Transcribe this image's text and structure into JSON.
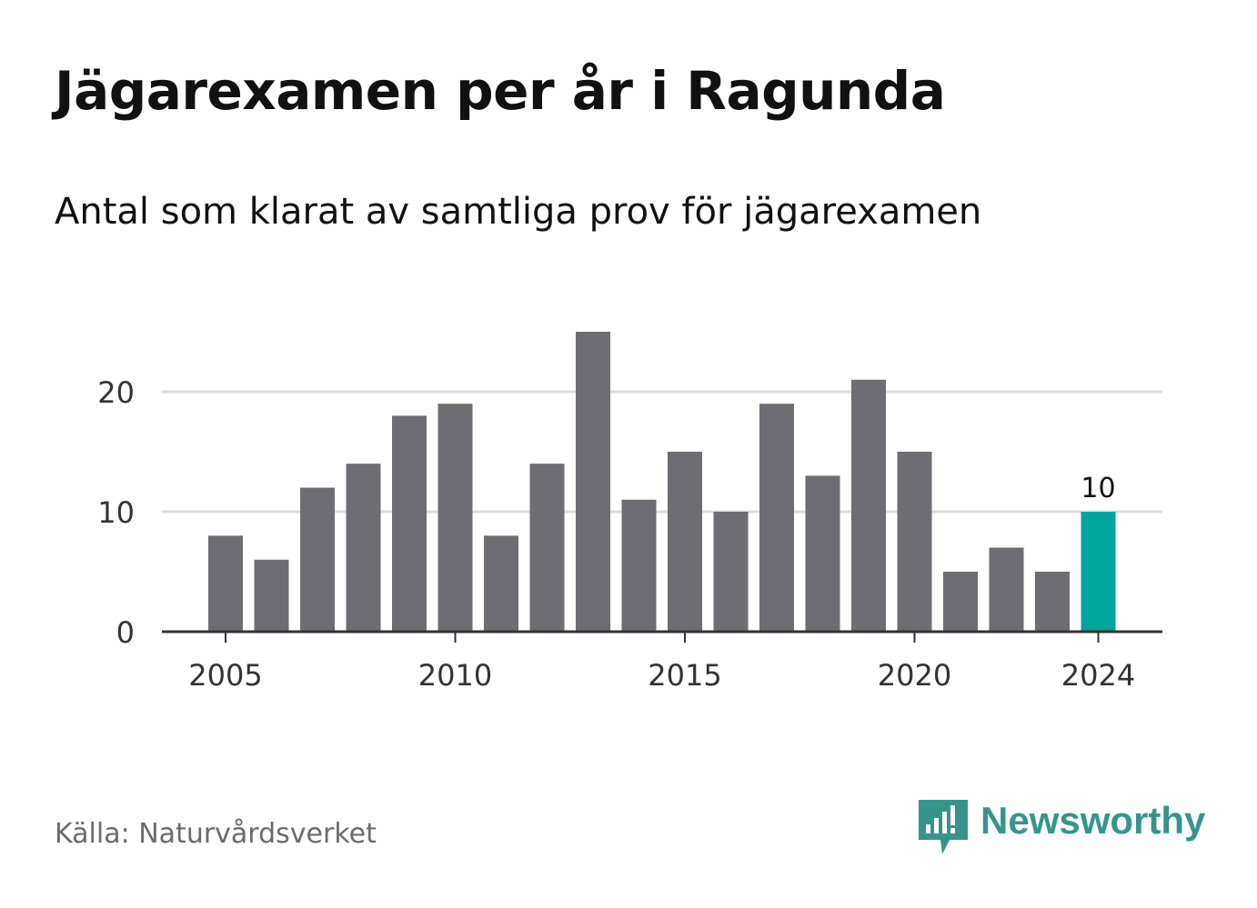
{
  "title": "Jägarexamen per år i Ragunda",
  "subtitle": "Antal som klarat av samtliga prov för jägarexamen",
  "source": "Källa: Naturvårdsverket",
  "brand": {
    "name": "Newsworthy",
    "icon": "newsworthy-logo-icon",
    "color": "#35958c"
  },
  "colors": {
    "bar": "#6e6d73",
    "highlight": "#00a59c",
    "grid": "#dddddd",
    "axis": "#333333",
    "tick_text": "#333333"
  },
  "chart_data": {
    "type": "bar",
    "categories": [
      2005,
      2006,
      2007,
      2008,
      2009,
      2010,
      2011,
      2012,
      2013,
      2014,
      2015,
      2016,
      2017,
      2018,
      2019,
      2020,
      2021,
      2022,
      2023,
      2024
    ],
    "values": [
      8,
      6,
      12,
      14,
      18,
      19,
      8,
      14,
      25,
      11,
      15,
      10,
      19,
      13,
      21,
      15,
      5,
      7,
      5,
      10
    ],
    "highlight_index": 19,
    "data_labels": [
      {
        "index": 19,
        "text": "10"
      }
    ],
    "title": "Jägarexamen per år i Ragunda",
    "subtitle": "Antal som klarat av samtliga prov för jägarexamen",
    "xlabel": "",
    "ylabel": "",
    "ylim": [
      0,
      25
    ],
    "y_ticks": [
      0,
      10,
      20
    ],
    "x_ticks": [
      2005,
      2010,
      2015,
      2020,
      2024
    ],
    "grid": true,
    "legend": "none"
  }
}
